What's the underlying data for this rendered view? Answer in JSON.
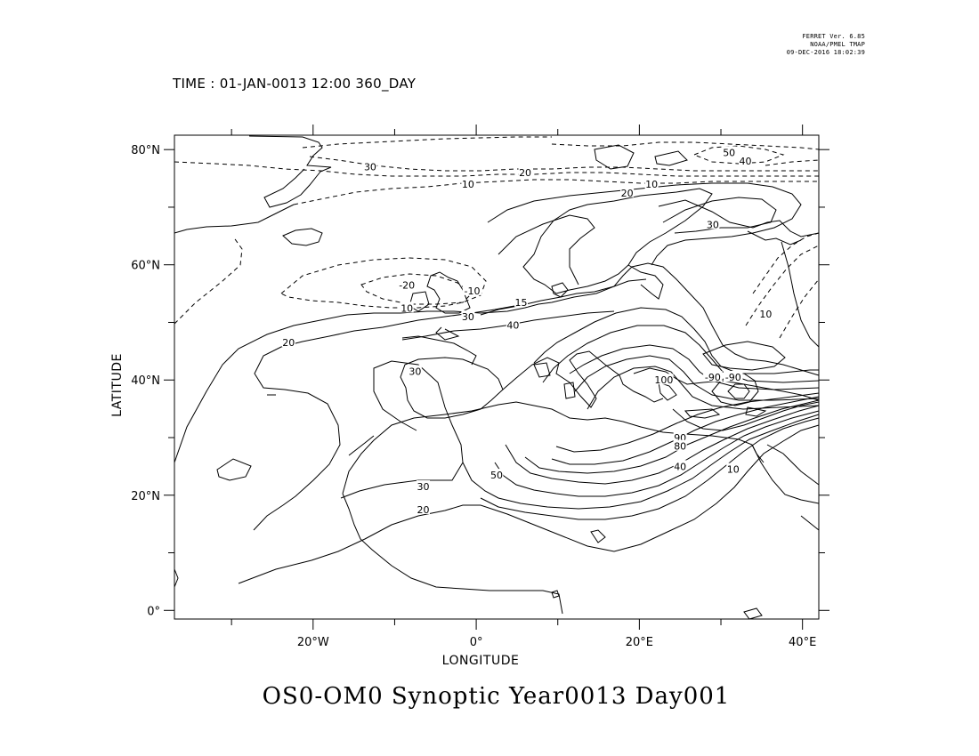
{
  "stamp": {
    "line1": "FERRET Ver. 6.85",
    "line2": "NOAA/PMEL TMAP",
    "line3": "09-DEC-2016 18:02:39"
  },
  "time_label": "TIME : 01-JAN-0013 12:00 360_DAY",
  "title": "OS0-OM0 Synoptic Year0013 Day001",
  "chart_data": {
    "type": "contour",
    "xlabel": "LONGITUDE",
    "ylabel": "LATITUDE",
    "xlim": [
      -37,
      42
    ],
    "ylim": [
      -1.5,
      82.5
    ],
    "x_ticks": [
      {
        "value": -20,
        "label": "20°W"
      },
      {
        "value": 0,
        "label": "0°"
      },
      {
        "value": 20,
        "label": "20°E"
      },
      {
        "value": 40,
        "label": "40°E"
      }
    ],
    "y_ticks": [
      {
        "value": 0,
        "label": "0°"
      },
      {
        "value": 20,
        "label": "20°N"
      },
      {
        "value": 40,
        "label": "40°N"
      },
      {
        "value": 60,
        "label": "60°N"
      },
      {
        "value": 80,
        "label": "80°N"
      }
    ],
    "contour_labels": [
      {
        "text": "50",
        "lon": 31,
        "lat": 79.5
      },
      {
        "text": "40",
        "lon": 33,
        "lat": 78
      },
      {
        "text": "30",
        "lon": -13,
        "lat": 77
      },
      {
        "text": "20",
        "lon": 6,
        "lat": 76
      },
      {
        "text": "10",
        "lon": -1,
        "lat": 74
      },
      {
        "text": "10",
        "lon": 21.5,
        "lat": 74
      },
      {
        "text": "20",
        "lon": 18.5,
        "lat": 72.5
      },
      {
        "text": "30",
        "lon": 29,
        "lat": 67
      },
      {
        "text": "-20",
        "lon": -8.5,
        "lat": 56.5
      },
      {
        "text": "-10",
        "lon": -0.5,
        "lat": 55.5
      },
      {
        "text": "15",
        "lon": 5.5,
        "lat": 53.5
      },
      {
        "text": "10",
        "lon": -8.5,
        "lat": 52.5
      },
      {
        "text": "10",
        "lon": 35.5,
        "lat": 51.5
      },
      {
        "text": "30",
        "lon": -1,
        "lat": 51
      },
      {
        "text": "40",
        "lon": 4.5,
        "lat": 49.5
      },
      {
        "text": "20",
        "lon": -23,
        "lat": 46.5
      },
      {
        "text": "30",
        "lon": -7.5,
        "lat": 41.5
      },
      {
        "text": "100",
        "lon": 23,
        "lat": 40
      },
      {
        "text": "-90",
        "lon": 29,
        "lat": 40.5
      },
      {
        "text": "-90",
        "lon": 31.5,
        "lat": 40.5
      },
      {
        "text": "90",
        "lon": 25,
        "lat": 30
      },
      {
        "text": "80",
        "lon": 25,
        "lat": 28.5
      },
      {
        "text": "40",
        "lon": 25,
        "lat": 25
      },
      {
        "text": "10",
        "lon": 31.5,
        "lat": 24.5
      },
      {
        "text": "50",
        "lon": 2.5,
        "lat": 23.5
      },
      {
        "text": "30",
        "lon": -6.5,
        "lat": 21.5
      },
      {
        "text": "20",
        "lon": -6.5,
        "lat": 17.5
      }
    ]
  }
}
